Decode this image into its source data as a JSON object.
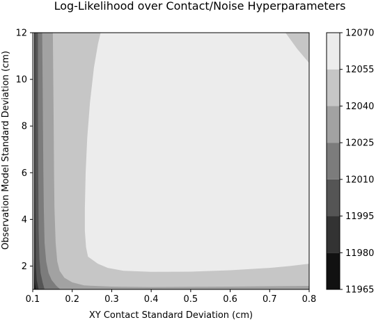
{
  "chart_data": {
    "type": "heatmap",
    "subtype": "filled-contour",
    "title": "Log-Likelihood over Contact/Noise Hyperparameters",
    "xlabel": "XY Contact Standard Deviation (cm)",
    "ylabel": "Observation Model Standard Deviation (cm)",
    "xlim": [
      0.1,
      0.8
    ],
    "ylim": [
      1,
      12
    ],
    "x_ticks": [
      "0.1",
      "0.2",
      "0.3",
      "0.4",
      "0.5",
      "0.6",
      "0.7",
      "0.8"
    ],
    "y_ticks": [
      "2",
      "4",
      "6",
      "8",
      "10",
      "12"
    ],
    "colorbar": {
      "levels": [
        11965,
        11980,
        11995,
        12010,
        12025,
        12040,
        12055,
        12070
      ],
      "labels": [
        "11965",
        "11980",
        "11995",
        "12010",
        "12025",
        "12040",
        "12055",
        "12070"
      ],
      "colors": [
        "#111111",
        "#333333",
        "#555555",
        "#7c7c7c",
        "#a2a2a2",
        "#c6c6c6",
        "#ececec"
      ]
    },
    "regions": [
      {
        "level_index": 6,
        "range": [
          12055,
          12070
        ],
        "boundary": [
          [
            0.103,
            1.0
          ],
          [
            0.8,
            1.0
          ],
          [
            0.8,
            12.0
          ],
          [
            0.103,
            12.0
          ]
        ]
      },
      {
        "level_index": 5,
        "range": [
          12040,
          12055
        ],
        "boundary": [
          [
            0.103,
            1.0
          ],
          [
            0.8,
            1.0
          ],
          [
            0.8,
            2.1
          ],
          [
            0.75,
            2.0
          ],
          [
            0.7,
            1.92
          ],
          [
            0.6,
            1.82
          ],
          [
            0.5,
            1.76
          ],
          [
            0.4,
            1.75
          ],
          [
            0.33,
            1.8
          ],
          [
            0.29,
            1.92
          ],
          [
            0.265,
            2.1
          ],
          [
            0.24,
            2.4
          ],
          [
            0.235,
            2.8
          ],
          [
            0.232,
            3.5
          ],
          [
            0.232,
            4.5
          ],
          [
            0.234,
            6.0
          ],
          [
            0.238,
            7.5
          ],
          [
            0.245,
            9.0
          ],
          [
            0.255,
            10.5
          ],
          [
            0.265,
            11.5
          ],
          [
            0.272,
            12.0
          ],
          [
            0.103,
            12.0
          ]
        ]
      },
      {
        "level_index": 5,
        "range": [
          12040,
          12055
        ],
        "boundary": [
          [
            0.74,
            12.0
          ],
          [
            0.8,
            12.0
          ],
          [
            0.8,
            10.7
          ],
          [
            0.77,
            11.3
          ]
        ]
      },
      {
        "level_index": 4,
        "range": [
          12025,
          12040
        ],
        "boundary": [
          [
            0.103,
            1.0
          ],
          [
            0.8,
            1.0
          ],
          [
            0.8,
            1.15
          ],
          [
            0.6,
            1.12
          ],
          [
            0.4,
            1.1
          ],
          [
            0.3,
            1.12
          ],
          [
            0.23,
            1.17
          ],
          [
            0.2,
            1.3
          ],
          [
            0.18,
            1.5
          ],
          [
            0.168,
            1.8
          ],
          [
            0.162,
            2.2
          ],
          [
            0.158,
            3.0
          ],
          [
            0.155,
            4.5
          ],
          [
            0.154,
            6.0
          ],
          [
            0.153,
            8.0
          ],
          [
            0.152,
            10.0
          ],
          [
            0.151,
            12.0
          ],
          [
            0.103,
            12.0
          ]
        ]
      },
      {
        "level_index": 3,
        "range": [
          12010,
          12025
        ],
        "boundary": [
          [
            0.103,
            1.0
          ],
          [
            0.17,
            1.0
          ],
          [
            0.16,
            1.15
          ],
          [
            0.148,
            1.4
          ],
          [
            0.14,
            1.7
          ],
          [
            0.134,
            2.2
          ],
          [
            0.13,
            3.0
          ],
          [
            0.128,
            4.5
          ],
          [
            0.127,
            6.0
          ],
          [
            0.126,
            8.0
          ],
          [
            0.125,
            10.0
          ],
          [
            0.124,
            12.0
          ],
          [
            0.103,
            12.0
          ]
        ]
      },
      {
        "level_index": 2,
        "range": [
          11995,
          12010
        ],
        "boundary": [
          [
            0.103,
            1.0
          ],
          [
            0.13,
            1.0
          ],
          [
            0.125,
            1.3
          ],
          [
            0.12,
            1.7
          ],
          [
            0.117,
            2.3
          ],
          [
            0.115,
            3.5
          ],
          [
            0.114,
            6.0
          ],
          [
            0.113,
            9.0
          ],
          [
            0.113,
            12.0
          ],
          [
            0.103,
            12.0
          ]
        ]
      },
      {
        "level_index": 1,
        "range": [
          11980,
          11995
        ],
        "boundary": [
          [
            0.103,
            1.0
          ],
          [
            0.115,
            1.0
          ],
          [
            0.11,
            1.4
          ],
          [
            0.108,
            2.0
          ],
          [
            0.107,
            3.5
          ],
          [
            0.106,
            6.0
          ],
          [
            0.106,
            9.0
          ],
          [
            0.106,
            12.0
          ],
          [
            0.103,
            12.0
          ]
        ]
      },
      {
        "level_index": 0,
        "range": [
          11965,
          11980
        ],
        "boundary": [
          [
            0.103,
            1.0
          ],
          [
            0.108,
            1.0
          ],
          [
            0.105,
            1.3
          ],
          [
            0.104,
            1.8
          ],
          [
            0.103,
            2.4
          ]
        ]
      }
    ]
  }
}
